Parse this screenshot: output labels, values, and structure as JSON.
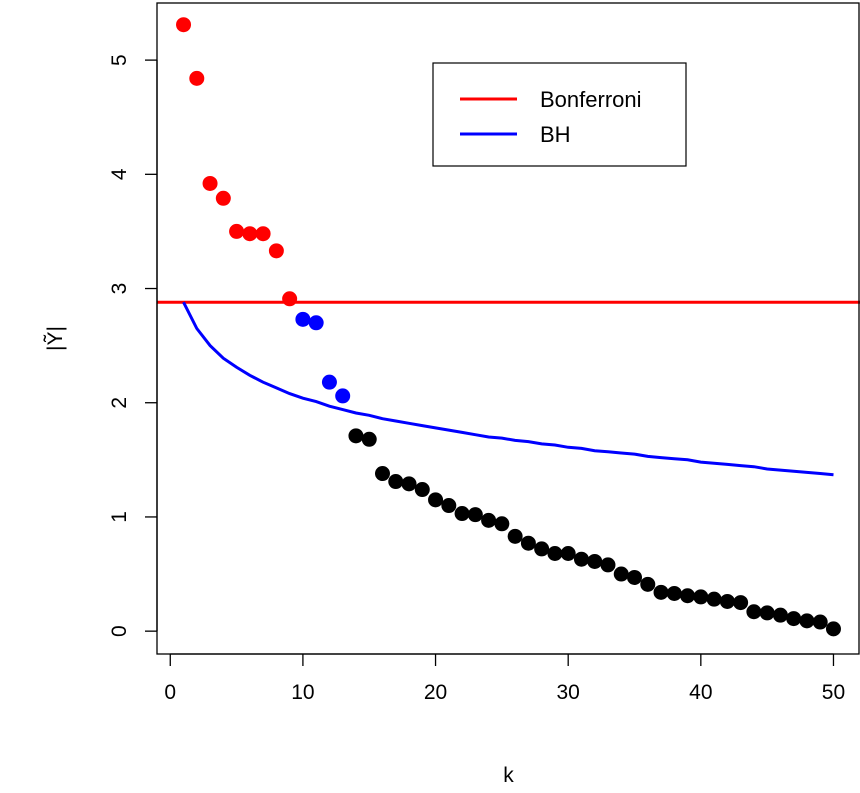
{
  "chart_data": {
    "type": "scatter",
    "xlabel": "k",
    "ylabel": "|Ỹ|",
    "xlim": [
      -1,
      52
    ],
    "ylim": [
      -0.2,
      5.5
    ],
    "xticks": [
      0,
      10,
      20,
      30,
      40,
      50
    ],
    "yticks": [
      0,
      1,
      2,
      3,
      4,
      5
    ],
    "colors": {
      "bonferroni": "#ff0000",
      "bh": "#0000ff",
      "neither": "#000000"
    },
    "points": [
      {
        "k": 1,
        "y": 5.31,
        "group": "bonferroni"
      },
      {
        "k": 2,
        "y": 4.84,
        "group": "bonferroni"
      },
      {
        "k": 3,
        "y": 3.92,
        "group": "bonferroni"
      },
      {
        "k": 4,
        "y": 3.79,
        "group": "bonferroni"
      },
      {
        "k": 5,
        "y": 3.5,
        "group": "bonferroni"
      },
      {
        "k": 6,
        "y": 3.48,
        "group": "bonferroni"
      },
      {
        "k": 7,
        "y": 3.48,
        "group": "bonferroni"
      },
      {
        "k": 8,
        "y": 3.33,
        "group": "bonferroni"
      },
      {
        "k": 9,
        "y": 2.91,
        "group": "bonferroni"
      },
      {
        "k": 10,
        "y": 2.73,
        "group": "bh"
      },
      {
        "k": 11,
        "y": 2.7,
        "group": "bh"
      },
      {
        "k": 12,
        "y": 2.18,
        "group": "bh"
      },
      {
        "k": 13,
        "y": 2.06,
        "group": "bh"
      },
      {
        "k": 14,
        "y": 1.71,
        "group": "neither"
      },
      {
        "k": 15,
        "y": 1.68,
        "group": "neither"
      },
      {
        "k": 16,
        "y": 1.38,
        "group": "neither"
      },
      {
        "k": 17,
        "y": 1.31,
        "group": "neither"
      },
      {
        "k": 18,
        "y": 1.29,
        "group": "neither"
      },
      {
        "k": 19,
        "y": 1.24,
        "group": "neither"
      },
      {
        "k": 20,
        "y": 1.15,
        "group": "neither"
      },
      {
        "k": 21,
        "y": 1.1,
        "group": "neither"
      },
      {
        "k": 22,
        "y": 1.03,
        "group": "neither"
      },
      {
        "k": 23,
        "y": 1.02,
        "group": "neither"
      },
      {
        "k": 24,
        "y": 0.97,
        "group": "neither"
      },
      {
        "k": 25,
        "y": 0.94,
        "group": "neither"
      },
      {
        "k": 26,
        "y": 0.83,
        "group": "neither"
      },
      {
        "k": 27,
        "y": 0.77,
        "group": "neither"
      },
      {
        "k": 28,
        "y": 0.72,
        "group": "neither"
      },
      {
        "k": 29,
        "y": 0.68,
        "group": "neither"
      },
      {
        "k": 30,
        "y": 0.68,
        "group": "neither"
      },
      {
        "k": 31,
        "y": 0.63,
        "group": "neither"
      },
      {
        "k": 32,
        "y": 0.61,
        "group": "neither"
      },
      {
        "k": 33,
        "y": 0.58,
        "group": "neither"
      },
      {
        "k": 34,
        "y": 0.5,
        "group": "neither"
      },
      {
        "k": 35,
        "y": 0.47,
        "group": "neither"
      },
      {
        "k": 36,
        "y": 0.41,
        "group": "neither"
      },
      {
        "k": 37,
        "y": 0.34,
        "group": "neither"
      },
      {
        "k": 38,
        "y": 0.33,
        "group": "neither"
      },
      {
        "k": 39,
        "y": 0.31,
        "group": "neither"
      },
      {
        "k": 40,
        "y": 0.3,
        "group": "neither"
      },
      {
        "k": 41,
        "y": 0.28,
        "group": "neither"
      },
      {
        "k": 42,
        "y": 0.26,
        "group": "neither"
      },
      {
        "k": 43,
        "y": 0.25,
        "group": "neither"
      },
      {
        "k": 44,
        "y": 0.17,
        "group": "neither"
      },
      {
        "k": 45,
        "y": 0.16,
        "group": "neither"
      },
      {
        "k": 46,
        "y": 0.14,
        "group": "neither"
      },
      {
        "k": 47,
        "y": 0.11,
        "group": "neither"
      },
      {
        "k": 48,
        "y": 0.09,
        "group": "neither"
      },
      {
        "k": 49,
        "y": 0.08,
        "group": "neither"
      },
      {
        "k": 50,
        "y": 0.02,
        "group": "neither"
      }
    ],
    "series": [
      {
        "name": "Bonferroni",
        "color": "#ff0000",
        "kind": "horizontal-line",
        "y": 2.88
      },
      {
        "name": "BH",
        "color": "#0000ff",
        "kind": "curve",
        "x": [
          1,
          2,
          3,
          4,
          5,
          6,
          7,
          8,
          9,
          10,
          11,
          12,
          13,
          14,
          15,
          16,
          17,
          18,
          19,
          20,
          21,
          22,
          23,
          24,
          25,
          26,
          27,
          28,
          29,
          30,
          31,
          32,
          33,
          34,
          35,
          36,
          37,
          38,
          39,
          40,
          41,
          42,
          43,
          44,
          45,
          46,
          47,
          48,
          49,
          50
        ],
        "y": [
          2.88,
          2.65,
          2.5,
          2.39,
          2.31,
          2.24,
          2.18,
          2.13,
          2.08,
          2.04,
          2.01,
          1.97,
          1.94,
          1.91,
          1.89,
          1.86,
          1.84,
          1.82,
          1.8,
          1.78,
          1.76,
          1.74,
          1.72,
          1.7,
          1.69,
          1.67,
          1.66,
          1.64,
          1.63,
          1.61,
          1.6,
          1.58,
          1.57,
          1.56,
          1.55,
          1.53,
          1.52,
          1.51,
          1.5,
          1.48,
          1.47,
          1.46,
          1.45,
          1.44,
          1.42,
          1.41,
          1.4,
          1.39,
          1.38,
          1.37
        ]
      }
    ],
    "legend": {
      "position": "top-right",
      "entries": [
        "Bonferroni",
        "BH"
      ]
    }
  }
}
